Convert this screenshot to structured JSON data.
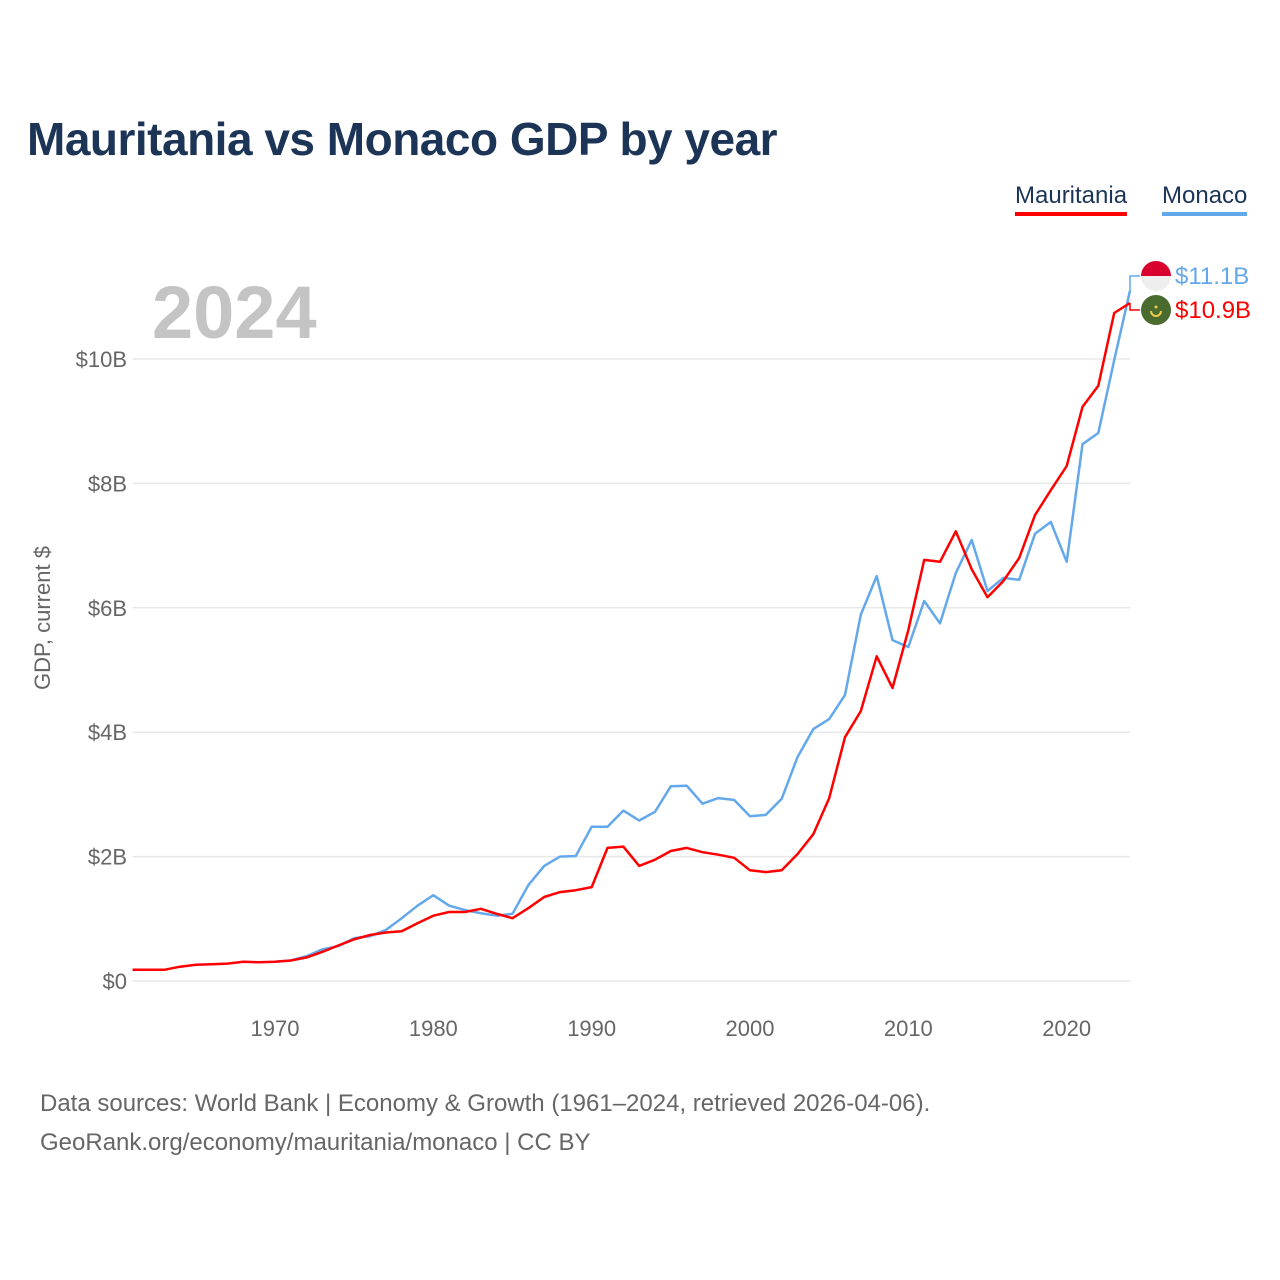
{
  "title": "Mauritania vs Monaco GDP by year",
  "legend": [
    {
      "label": "Mauritania",
      "color": "#ff0000"
    },
    {
      "label": "Monaco",
      "color": "#64a8ec"
    }
  ],
  "source": {
    "line1": "Data sources: World Bank | Economy & Growth (1961–2024, retrieved 2026-04-06).",
    "line2": "GeoRank.org/economy/mauritania/monaco | CC BY"
  },
  "chart_data": {
    "type": "line",
    "title": "Mauritania vs Monaco GDP by year",
    "year_label": "2024",
    "ylabel": "GDP, current $",
    "xlabel": "",
    "xlim": [
      1961,
      2024
    ],
    "ylim": [
      0,
      11.1
    ],
    "x_ticks": [
      1970,
      1980,
      1990,
      2000,
      2010,
      2020
    ],
    "x_tick_labels": [
      "1970",
      "1980",
      "1990",
      "2000",
      "2010",
      "2020"
    ],
    "y_ticks": [
      0,
      2,
      4,
      6,
      8,
      10
    ],
    "y_tick_labels": [
      "$0",
      "$2B",
      "$4B",
      "$6B",
      "$8B",
      "$10B"
    ],
    "grid": true,
    "legend_position": "top-right",
    "series": [
      {
        "name": "Mauritania",
        "color": "#ff0000",
        "end_label": "$10.9B",
        "flag": "mauritania-flag",
        "start_year": 1961,
        "values": [
          0.18,
          0.18,
          0.18,
          0.23,
          0.26,
          0.27,
          0.28,
          0.31,
          0.3,
          0.31,
          0.33,
          0.38,
          0.47,
          0.57,
          0.67,
          0.74,
          0.78,
          0.8,
          0.93,
          1.05,
          1.11,
          1.11,
          1.16,
          1.08,
          1.01,
          1.17,
          1.35,
          1.43,
          1.46,
          1.51,
          2.14,
          2.16,
          1.85,
          1.95,
          2.09,
          2.14,
          2.07,
          2.03,
          1.98,
          1.78,
          1.75,
          1.78,
          2.04,
          2.36,
          2.94,
          3.92,
          4.34,
          5.22,
          4.71,
          5.64,
          6.77,
          6.74,
          7.23,
          6.62,
          6.17,
          6.43,
          6.8,
          7.49,
          7.89,
          8.28,
          9.23,
          9.57,
          10.74,
          10.9
        ]
      },
      {
        "name": "Monaco",
        "color": "#64a8ec",
        "end_label": "$11.1B",
        "flag": "monaco-flag",
        "start_year": 1970,
        "values": [
          0.31,
          0.33,
          0.4,
          0.51,
          0.56,
          0.69,
          0.72,
          0.82,
          1.01,
          1.21,
          1.38,
          1.21,
          1.14,
          1.09,
          1.05,
          1.08,
          1.54,
          1.85,
          2.0,
          2.01,
          2.48,
          2.48,
          2.74,
          2.58,
          2.72,
          3.13,
          3.14,
          2.85,
          2.94,
          2.91,
          2.65,
          2.67,
          2.93,
          3.6,
          4.05,
          4.21,
          4.6,
          5.89,
          6.51,
          5.48,
          5.37,
          6.11,
          5.75,
          6.56,
          7.09,
          6.27,
          6.48,
          6.45,
          7.19,
          7.38,
          6.74,
          8.63,
          8.81,
          9.98,
          11.1
        ]
      }
    ]
  }
}
